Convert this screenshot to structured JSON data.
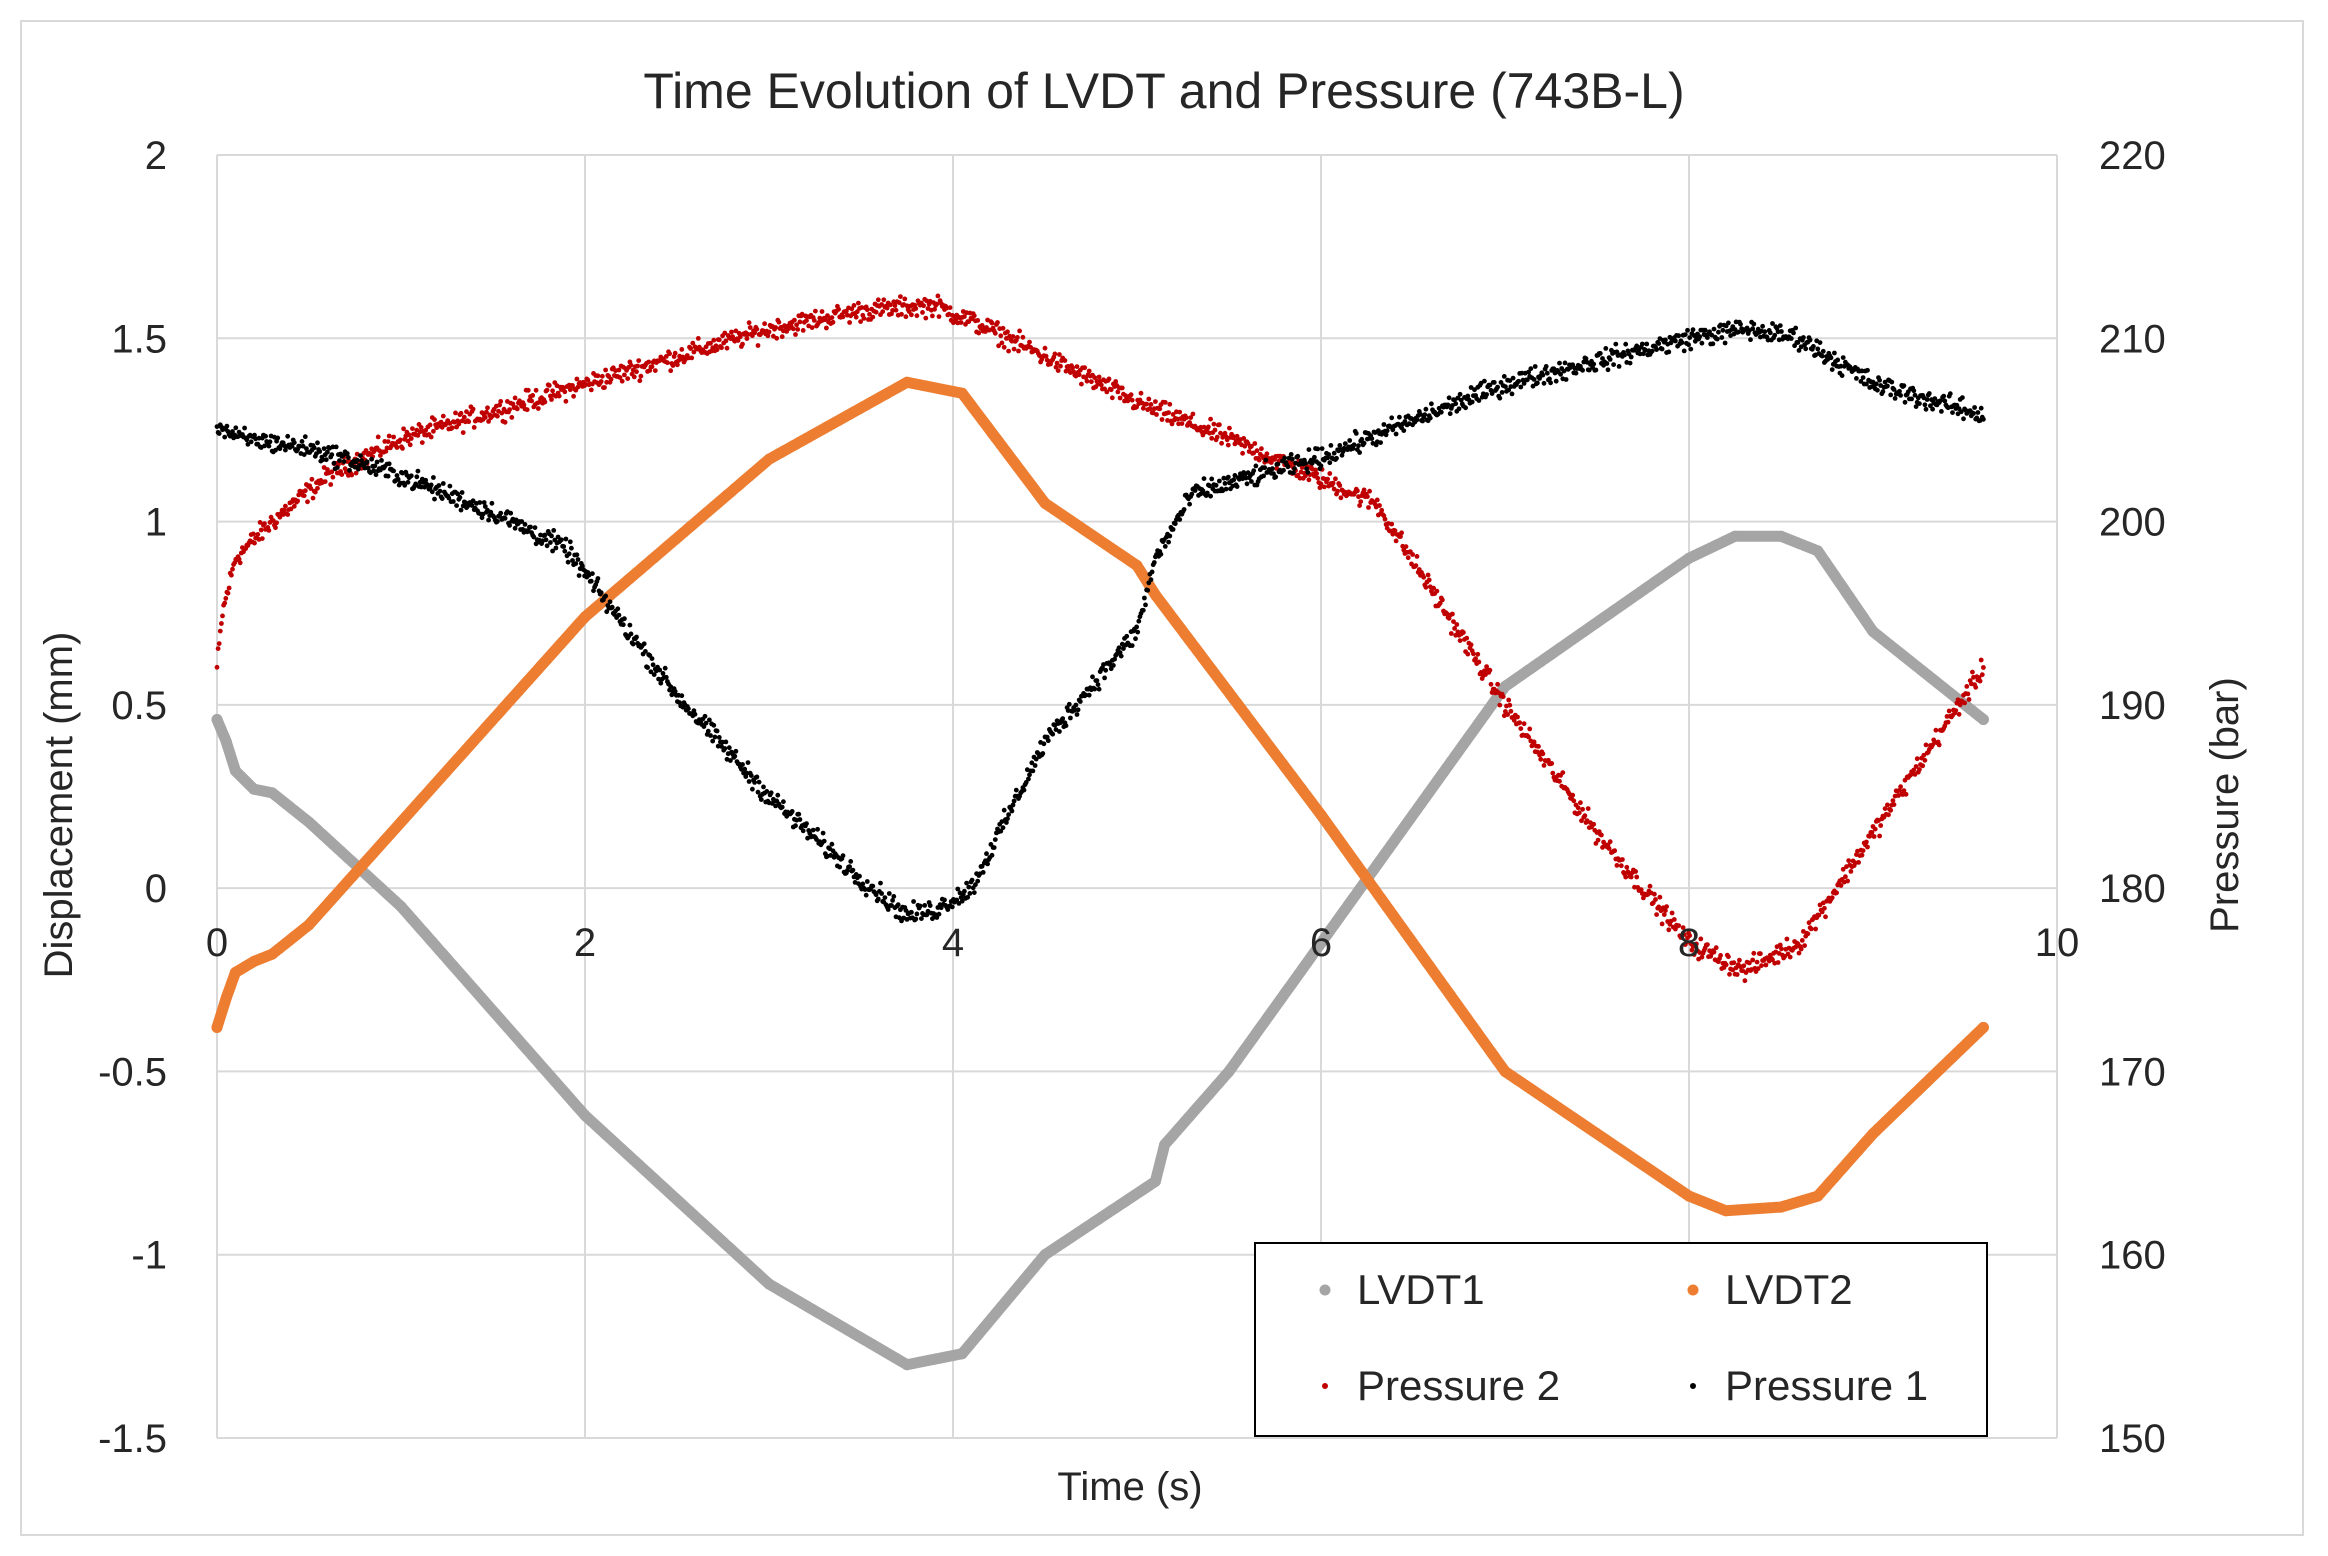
{
  "chart_data": {
    "type": "line",
    "title": "Time Evolution of LVDT and Pressure (743B-L)",
    "xlabel": "Time (s)",
    "ylabel_left": "Displacement  (mm)",
    "ylabel_right": "Pressure (bar)",
    "xlim": [
      0,
      10
    ],
    "ylim_left": [
      -1.5,
      2
    ],
    "ylim_right": [
      150,
      220
    ],
    "x_ticks": [
      "0",
      "2",
      "4",
      "6",
      "8",
      "10"
    ],
    "y_left_ticks": [
      "2",
      "1.5",
      "1",
      "0.5",
      "0",
      "-0.5",
      "-1",
      "-1.5"
    ],
    "y_right_ticks": [
      "220",
      "210",
      "200",
      "190",
      "180",
      "170",
      "160",
      "150"
    ],
    "grid": true,
    "legend_position": "bottom-right",
    "series": [
      {
        "name": "LVDT1",
        "axis": "left",
        "style": "thick-line",
        "color": "#a5a5a5",
        "x": [
          0,
          0.05,
          0.1,
          0.2,
          0.3,
          0.5,
          1,
          2,
          3,
          3.75,
          4.05,
          4.5,
          5.1,
          5.15,
          5.5,
          6,
          7,
          8,
          8.25,
          8.5,
          8.7,
          9,
          9.6
        ],
        "values": [
          0.46,
          0.4,
          0.32,
          0.27,
          0.26,
          0.18,
          -0.05,
          -0.62,
          -1.08,
          -1.3,
          -1.27,
          -1.0,
          -0.8,
          -0.7,
          -0.5,
          -0.15,
          0.55,
          0.9,
          0.96,
          0.96,
          0.92,
          0.7,
          0.46
        ]
      },
      {
        "name": "LVDT2",
        "axis": "left",
        "style": "thick-line",
        "color": "#ed7d31",
        "x": [
          0,
          0.05,
          0.1,
          0.2,
          0.3,
          0.5,
          1,
          2,
          3,
          3.75,
          4.05,
          4.5,
          5.0,
          5.1,
          6,
          7,
          8,
          8.2,
          8.5,
          8.7,
          9,
          9.6
        ],
        "values": [
          -0.38,
          -0.3,
          -0.23,
          -0.2,
          -0.18,
          -0.1,
          0.18,
          0.74,
          1.17,
          1.38,
          1.35,
          1.05,
          0.88,
          0.8,
          0.2,
          -0.5,
          -0.84,
          -0.88,
          -0.87,
          -0.84,
          -0.67,
          -0.38
        ]
      },
      {
        "name": "Pressure 2",
        "axis": "right",
        "style": "dots",
        "color": "#c00000",
        "x": [
          0,
          0.03,
          0.1,
          0.3,
          0.6,
          1,
          2,
          3,
          3.5,
          3.9,
          4.2,
          5,
          5.5,
          6.3,
          7,
          7.5,
          8,
          8.3,
          8.6,
          9,
          9.6
        ],
        "values": [
          192,
          195,
          198,
          200,
          202.5,
          204.5,
          207.5,
          210.5,
          211.5,
          211.8,
          210.5,
          206.5,
          204.5,
          201,
          190,
          183,
          177,
          175.5,
          177,
          183,
          192
        ]
      },
      {
        "name": "Pressure 1",
        "axis": "right",
        "style": "dots",
        "color": "#000000",
        "x": [
          0,
          0.1,
          0.5,
          1,
          1.5,
          1.9,
          2.5,
          3,
          3.5,
          3.75,
          3.9,
          4.1,
          4.5,
          5.0,
          5.1,
          5.3,
          6,
          7,
          8,
          8.3,
          8.6,
          9,
          9.6
        ],
        "values": [
          205.3,
          204.6,
          204,
          202.5,
          200.5,
          198.5,
          190.5,
          185,
          180.5,
          178.5,
          178.8,
          180,
          188,
          194,
          198,
          201.5,
          203.5,
          207.5,
          210,
          210.5,
          210,
          207.5,
          205.8
        ]
      }
    ]
  }
}
